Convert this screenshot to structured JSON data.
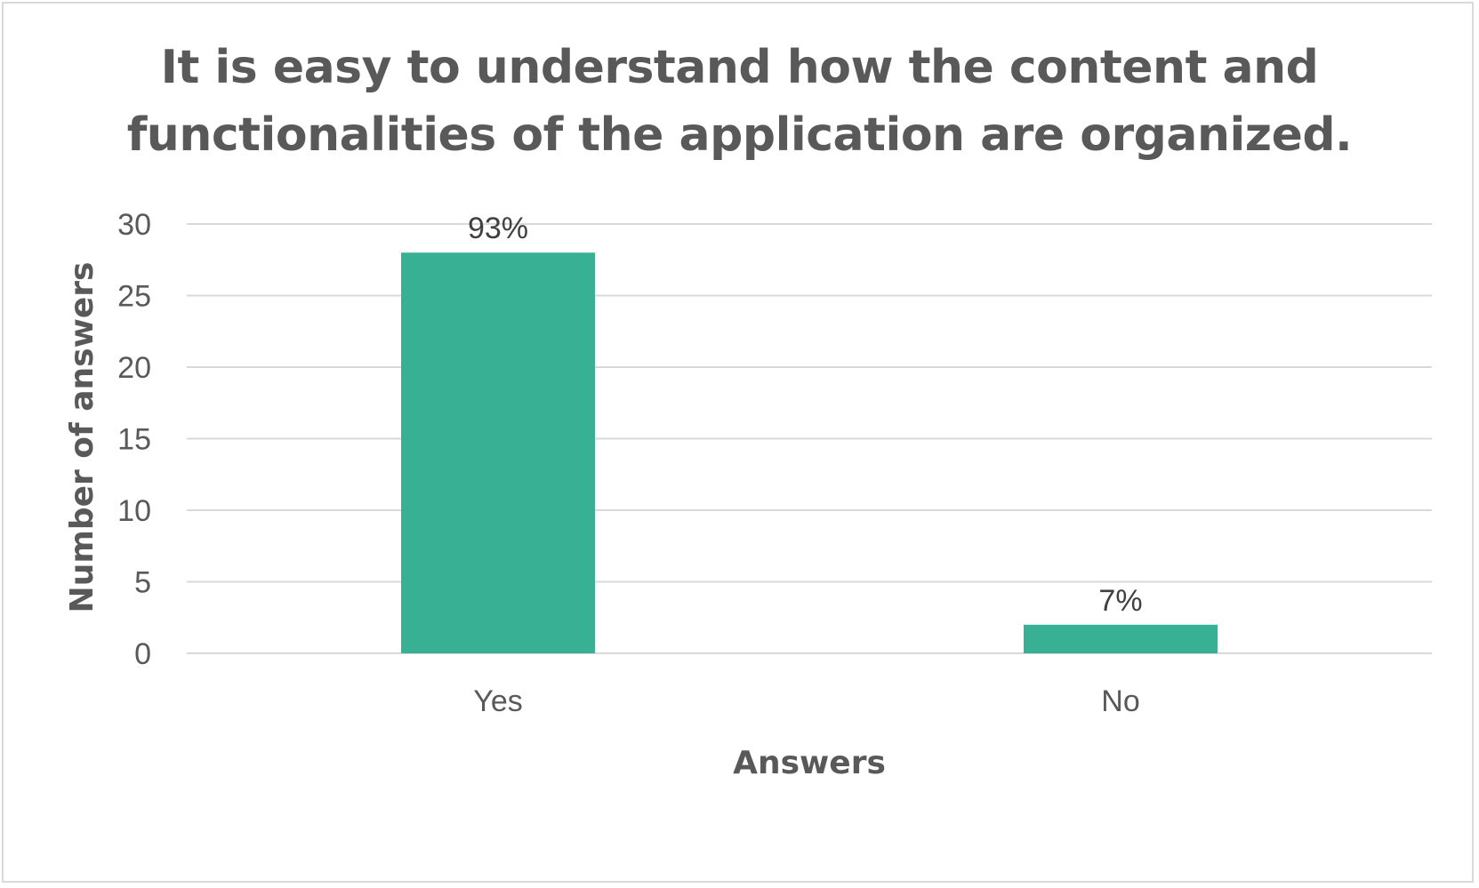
{
  "chart_data": {
    "type": "bar",
    "title_lines": [
      "It is easy to understand how the content and",
      "functionalities of the application are organized."
    ],
    "categories": [
      "Yes",
      "No"
    ],
    "values": [
      28,
      2
    ],
    "data_labels": [
      "93%",
      "7%"
    ],
    "xlabel": "Answers",
    "ylabel": "Number of answers",
    "ylim": [
      0,
      30
    ],
    "yticks": [
      0,
      5,
      10,
      15,
      20,
      25,
      30
    ],
    "grid": true,
    "legend": "none",
    "bar_color": "#38b094",
    "grid_color": "#d9d9d9",
    "text_color": "#595959"
  }
}
